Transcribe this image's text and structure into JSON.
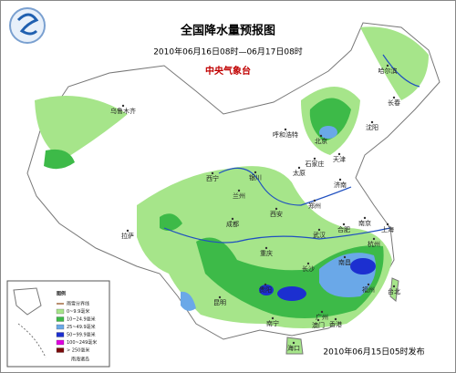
{
  "title": "全国降水量预报图",
  "subtitle": "2010年06月16日08时—06月17日08时",
  "agency": "中央气象台",
  "issued": "2010年06月15日05时发布",
  "cities": [
    "乌鲁木齐",
    "哈尔滨",
    "长春",
    "沈阳",
    "呼和浩特",
    "北京",
    "天津",
    "石家庄",
    "太原",
    "济南",
    "银川",
    "西宁",
    "兰州",
    "郑州",
    "西安",
    "合肥",
    "南京",
    "上海",
    "杭州",
    "武汉",
    "成都",
    "拉萨",
    "重庆",
    "长沙",
    "南昌",
    "福州",
    "台北",
    "贵阳",
    "昆明",
    "南宁",
    "广州",
    "香港",
    "澳门",
    "海口"
  ],
  "legend": {
    "title": "图例",
    "items": [
      {
        "label": "雨雪分界线",
        "color": "#8b4513"
      },
      {
        "label": "0~9.9毫米",
        "color": "#a6e58a"
      },
      {
        "label": "10~24.9毫米",
        "color": "#3dba48"
      },
      {
        "label": "25~49.9毫米",
        "color": "#6aa8e8"
      },
      {
        "label": "50~99.9毫米",
        "color": "#1c2fd0"
      },
      {
        "label": "100~249毫米",
        "color": "#e000e0"
      },
      {
        "label": "> 250毫米",
        "color": "#7a0a0a"
      }
    ]
  },
  "inset_label": "南海诸岛"
}
